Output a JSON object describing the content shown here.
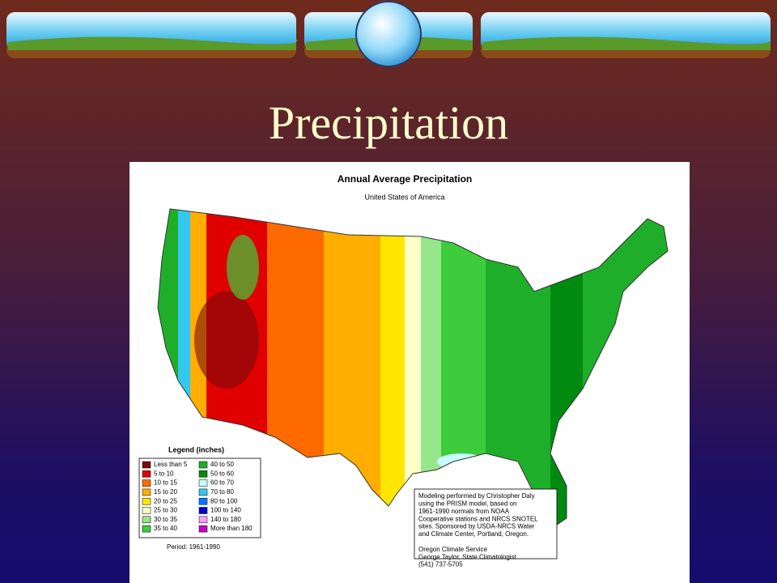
{
  "slide": {
    "title": "Precipitation"
  },
  "map": {
    "title": "Annual Average Precipitation",
    "subtitle": "United States of America",
    "legend": {
      "title": "Legend (inches)",
      "items": [
        {
          "label": "Less than 5",
          "color": "#7a0a0a"
        },
        {
          "label": "5 to 10",
          "color": "#e00000"
        },
        {
          "label": "10 to 15",
          "color": "#ff6a00"
        },
        {
          "label": "15 to 20",
          "color": "#ffae00"
        },
        {
          "label": "20 to 25",
          "color": "#ffe600"
        },
        {
          "label": "25 to 30",
          "color": "#ffffc8"
        },
        {
          "label": "30 to 35",
          "color": "#96e68c"
        },
        {
          "label": "35 to 40",
          "color": "#3ccc3c"
        },
        {
          "label": "40 to 50",
          "color": "#1fae2a"
        },
        {
          "label": "50 to 60",
          "color": "#008a10"
        },
        {
          "label": "60 to 70",
          "color": "#c8ffff"
        },
        {
          "label": "70 to 80",
          "color": "#32c8f0"
        },
        {
          "label": "80 to 100",
          "color": "#0078ff"
        },
        {
          "label": "100 to 140",
          "color": "#0000c8"
        },
        {
          "label": "140 to 180",
          "color": "#ff9cff"
        },
        {
          "label": "More than 180",
          "color": "#c800c8"
        }
      ]
    },
    "period": "Period: 1961-1990",
    "credits": {
      "modeling": [
        "Modeling performed by Christopher Daly",
        "using the PRISM model, based on",
        "1961-1990 normals from NOAA",
        "Cooperative stations and NRCS SNOTEL",
        "sites.  Sponsored by USDA-NRCS Water",
        "and Climate Center, Portland, Oregon."
      ],
      "contact": [
        "Oregon Climate Service",
        "George Taylor, State Climatologist",
        "(541) 737-5705"
      ]
    }
  }
}
